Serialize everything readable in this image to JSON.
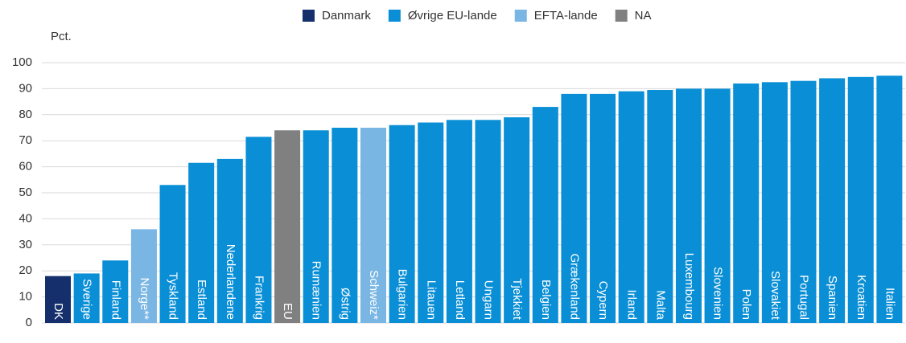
{
  "chart_data": {
    "type": "bar",
    "y_label": "Pct.",
    "categories": [
      "DK",
      "Sverige",
      "Finland",
      "Norge**",
      "Tyskland",
      "Estland",
      "Nederlandene",
      "Frankrig",
      "EU",
      "Rumænien",
      "Østrig",
      "Schweiz*",
      "Bulgarien",
      "Litauen",
      "Letland",
      "Ungarn",
      "Tjekkiet",
      "Belgien",
      "Grækenland",
      "Cypern",
      "Irland",
      "Malta",
      "Luxembourg",
      "Slovenien",
      "Polen",
      "Slovakiet",
      "Portugal",
      "Spanien",
      "Kroatien",
      "Italien"
    ],
    "series": [
      {
        "name": "Danmark",
        "color": "#142f6b",
        "values": [
          18,
          null,
          null,
          null,
          null,
          null,
          null,
          null,
          null,
          null,
          null,
          null,
          null,
          null,
          null,
          null,
          null,
          null,
          null,
          null,
          null,
          null,
          null,
          null,
          null,
          null,
          null,
          null,
          null,
          null
        ]
      },
      {
        "name": "Øvrige EU-lande",
        "color": "#0a8fd6",
        "values": [
          null,
          19,
          24,
          null,
          53,
          61.5,
          63,
          71.5,
          null,
          74,
          75,
          null,
          76,
          77,
          78,
          78,
          79,
          83,
          88,
          88,
          89,
          89.5,
          90,
          90,
          92,
          92.5,
          93,
          94,
          94.5,
          95
        ]
      },
      {
        "name": "EFTA-lande",
        "color": "#79b6e4",
        "values": [
          null,
          null,
          null,
          36,
          null,
          null,
          null,
          null,
          null,
          null,
          null,
          75,
          null,
          null,
          null,
          null,
          null,
          null,
          null,
          null,
          null,
          null,
          null,
          null,
          null,
          null,
          null,
          null,
          null,
          null
        ]
      },
      {
        "name": "NA",
        "color": "#808080",
        "values": [
          null,
          null,
          null,
          null,
          null,
          null,
          null,
          null,
          74,
          null,
          null,
          null,
          null,
          null,
          null,
          null,
          null,
          null,
          null,
          null,
          null,
          null,
          null,
          null,
          null,
          null,
          null,
          null,
          null,
          null
        ]
      }
    ],
    "ylim": [
      0,
      100
    ],
    "yticks": [
      0,
      10,
      20,
      30,
      40,
      50,
      60,
      70,
      80,
      90,
      100
    ],
    "grid": true,
    "legend": "top"
  }
}
